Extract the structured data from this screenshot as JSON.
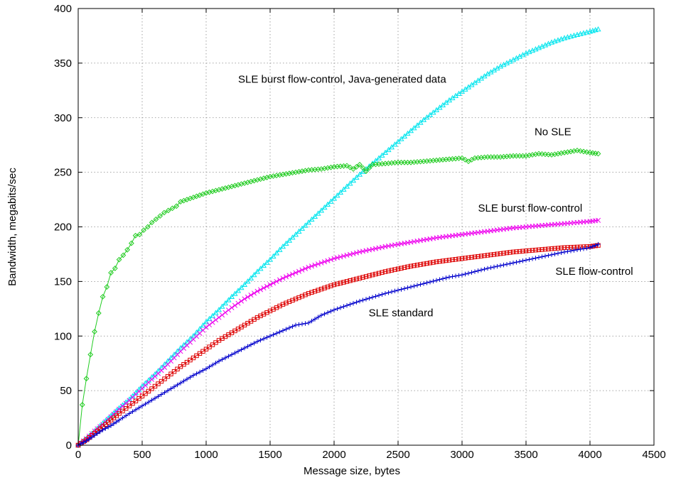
{
  "chart_data": {
    "type": "line",
    "title": "",
    "xlabel": "Message size, bytes",
    "ylabel": "Bandwidth, megabits/sec",
    "xlim": [
      0,
      4500
    ],
    "ylim": [
      0,
      400
    ],
    "xticks": [
      0,
      500,
      1000,
      1500,
      2000,
      2500,
      3000,
      3500,
      4000,
      4500
    ],
    "yticks": [
      0,
      50,
      100,
      150,
      200,
      250,
      300,
      350,
      400
    ],
    "grid": true,
    "legend": "inline labels",
    "series": [
      {
        "name": "SLE burst flow-control, Java-generated data",
        "color": "#00e5ee",
        "marker": "triangle",
        "label_at": [
          1250,
          332
        ],
        "label_anchor": "start",
        "points": [
          [
            0,
            0
          ],
          [
            64,
            6
          ],
          [
            128,
            13
          ],
          [
            192,
            20
          ],
          [
            256,
            27
          ],
          [
            320,
            34
          ],
          [
            400,
            42
          ],
          [
            500,
            54
          ],
          [
            600,
            65
          ],
          [
            700,
            77
          ],
          [
            800,
            89
          ],
          [
            900,
            100
          ],
          [
            1000,
            113
          ],
          [
            1100,
            124
          ],
          [
            1200,
            136
          ],
          [
            1300,
            147
          ],
          [
            1400,
            159
          ],
          [
            1500,
            170
          ],
          [
            1600,
            182
          ],
          [
            1700,
            193
          ],
          [
            1800,
            204
          ],
          [
            1900,
            215
          ],
          [
            2000,
            226
          ],
          [
            2100,
            237
          ],
          [
            2200,
            248
          ],
          [
            2300,
            258
          ],
          [
            2400,
            268
          ],
          [
            2500,
            278
          ],
          [
            2600,
            288
          ],
          [
            2700,
            298
          ],
          [
            2800,
            307
          ],
          [
            2900,
            316
          ],
          [
            3000,
            324
          ],
          [
            3100,
            332
          ],
          [
            3200,
            340
          ],
          [
            3300,
            347
          ],
          [
            3400,
            353
          ],
          [
            3500,
            359
          ],
          [
            3600,
            364
          ],
          [
            3700,
            369
          ],
          [
            3800,
            373
          ],
          [
            3900,
            376
          ],
          [
            4000,
            379
          ],
          [
            4064,
            381
          ]
        ]
      },
      {
        "name": "No SLE",
        "color": "#22cc22",
        "marker": "diamond",
        "label_at": [
          3710,
          284
        ],
        "label_anchor": "middle",
        "points": [
          [
            0,
            0
          ],
          [
            32,
            37
          ],
          [
            64,
            61
          ],
          [
            96,
            83
          ],
          [
            128,
            104
          ],
          [
            160,
            121
          ],
          [
            192,
            136
          ],
          [
            224,
            145
          ],
          [
            256,
            158
          ],
          [
            288,
            162
          ],
          [
            320,
            170
          ],
          [
            352,
            174
          ],
          [
            384,
            179
          ],
          [
            416,
            185
          ],
          [
            448,
            192
          ],
          [
            480,
            193
          ],
          [
            512,
            197
          ],
          [
            544,
            200
          ],
          [
            576,
            204
          ],
          [
            608,
            207
          ],
          [
            640,
            210
          ],
          [
            672,
            213
          ],
          [
            704,
            215
          ],
          [
            736,
            217
          ],
          [
            768,
            219
          ],
          [
            800,
            223
          ],
          [
            850,
            225
          ],
          [
            900,
            227
          ],
          [
            950,
            229
          ],
          [
            1000,
            231
          ],
          [
            1100,
            234
          ],
          [
            1200,
            237
          ],
          [
            1300,
            240
          ],
          [
            1400,
            243
          ],
          [
            1500,
            246
          ],
          [
            1600,
            248
          ],
          [
            1700,
            250
          ],
          [
            1800,
            252
          ],
          [
            1900,
            253
          ],
          [
            2000,
            255
          ],
          [
            2100,
            256
          ],
          [
            2150,
            253
          ],
          [
            2200,
            257
          ],
          [
            2250,
            251
          ],
          [
            2300,
            257
          ],
          [
            2400,
            258
          ],
          [
            2500,
            259
          ],
          [
            2600,
            259
          ],
          [
            2700,
            260
          ],
          [
            2800,
            261
          ],
          [
            2900,
            262
          ],
          [
            3000,
            263
          ],
          [
            3050,
            260
          ],
          [
            3100,
            263
          ],
          [
            3200,
            264
          ],
          [
            3300,
            264
          ],
          [
            3400,
            265
          ],
          [
            3500,
            265
          ],
          [
            3600,
            267
          ],
          [
            3700,
            266
          ],
          [
            3800,
            268
          ],
          [
            3900,
            270
          ],
          [
            4000,
            268
          ],
          [
            4064,
            267
          ]
        ]
      },
      {
        "name": "SLE burst flow-control",
        "color": "#ee00ee",
        "marker": "x",
        "label_at": [
          3125,
          214
        ],
        "label_anchor": "start",
        "points": [
          [
            0,
            0
          ],
          [
            64,
            6
          ],
          [
            128,
            13
          ],
          [
            192,
            19
          ],
          [
            256,
            26
          ],
          [
            320,
            33
          ],
          [
            400,
            41
          ],
          [
            500,
            52
          ],
          [
            600,
            63
          ],
          [
            700,
            74
          ],
          [
            800,
            86
          ],
          [
            900,
            97
          ],
          [
            1000,
            108
          ],
          [
            1100,
            117
          ],
          [
            1200,
            126
          ],
          [
            1300,
            134
          ],
          [
            1400,
            141
          ],
          [
            1500,
            147
          ],
          [
            1600,
            153
          ],
          [
            1700,
            158
          ],
          [
            1800,
            163
          ],
          [
            1900,
            167
          ],
          [
            2000,
            171
          ],
          [
            2200,
            177
          ],
          [
            2400,
            182
          ],
          [
            2600,
            186
          ],
          [
            2800,
            190
          ],
          [
            3000,
            193
          ],
          [
            3200,
            196
          ],
          [
            3400,
            199
          ],
          [
            3600,
            201
          ],
          [
            3800,
            203
          ],
          [
            4000,
            205
          ],
          [
            4064,
            206
          ]
        ]
      },
      {
        "name": "SLE flow-control",
        "color": "#dd0000",
        "marker": "square",
        "label_at": [
          3730,
          156
        ],
        "label_anchor": "start",
        "points": [
          [
            0,
            0
          ],
          [
            64,
            5
          ],
          [
            128,
            11
          ],
          [
            192,
            17
          ],
          [
            256,
            23
          ],
          [
            320,
            29
          ],
          [
            400,
            36
          ],
          [
            500,
            45
          ],
          [
            600,
            54
          ],
          [
            700,
            63
          ],
          [
            800,
            72
          ],
          [
            900,
            80
          ],
          [
            1000,
            88
          ],
          [
            1100,
            96
          ],
          [
            1200,
            103
          ],
          [
            1300,
            110
          ],
          [
            1400,
            117
          ],
          [
            1500,
            123
          ],
          [
            1600,
            129
          ],
          [
            1700,
            134
          ],
          [
            1800,
            139
          ],
          [
            1900,
            143
          ],
          [
            2000,
            147
          ],
          [
            2200,
            153
          ],
          [
            2400,
            159
          ],
          [
            2600,
            164
          ],
          [
            2800,
            168
          ],
          [
            3000,
            171
          ],
          [
            3200,
            174
          ],
          [
            3400,
            177
          ],
          [
            3600,
            179
          ],
          [
            3800,
            181
          ],
          [
            4000,
            182
          ],
          [
            4064,
            183
          ]
        ]
      },
      {
        "name": "SLE standard",
        "color": "#0000cc",
        "marker": "plus",
        "label_at": [
          2270,
          118
        ],
        "label_anchor": "start",
        "points": [
          [
            0,
            0
          ],
          [
            64,
            4
          ],
          [
            128,
            9
          ],
          [
            192,
            14
          ],
          [
            256,
            18
          ],
          [
            320,
            23
          ],
          [
            400,
            29
          ],
          [
            500,
            36
          ],
          [
            600,
            43
          ],
          [
            700,
            50
          ],
          [
            800,
            57
          ],
          [
            900,
            64
          ],
          [
            1000,
            70
          ],
          [
            1100,
            77
          ],
          [
            1200,
            83
          ],
          [
            1300,
            89
          ],
          [
            1400,
            95
          ],
          [
            1500,
            100
          ],
          [
            1600,
            105
          ],
          [
            1700,
            110
          ],
          [
            1800,
            112
          ],
          [
            1900,
            119
          ],
          [
            2000,
            124
          ],
          [
            2200,
            132
          ],
          [
            2400,
            139
          ],
          [
            2600,
            145
          ],
          [
            2800,
            151
          ],
          [
            2900,
            154
          ],
          [
            3000,
            156
          ],
          [
            3200,
            162
          ],
          [
            3400,
            167
          ],
          [
            3600,
            172
          ],
          [
            3800,
            177
          ],
          [
            4000,
            181
          ],
          [
            4064,
            184
          ]
        ]
      }
    ]
  }
}
